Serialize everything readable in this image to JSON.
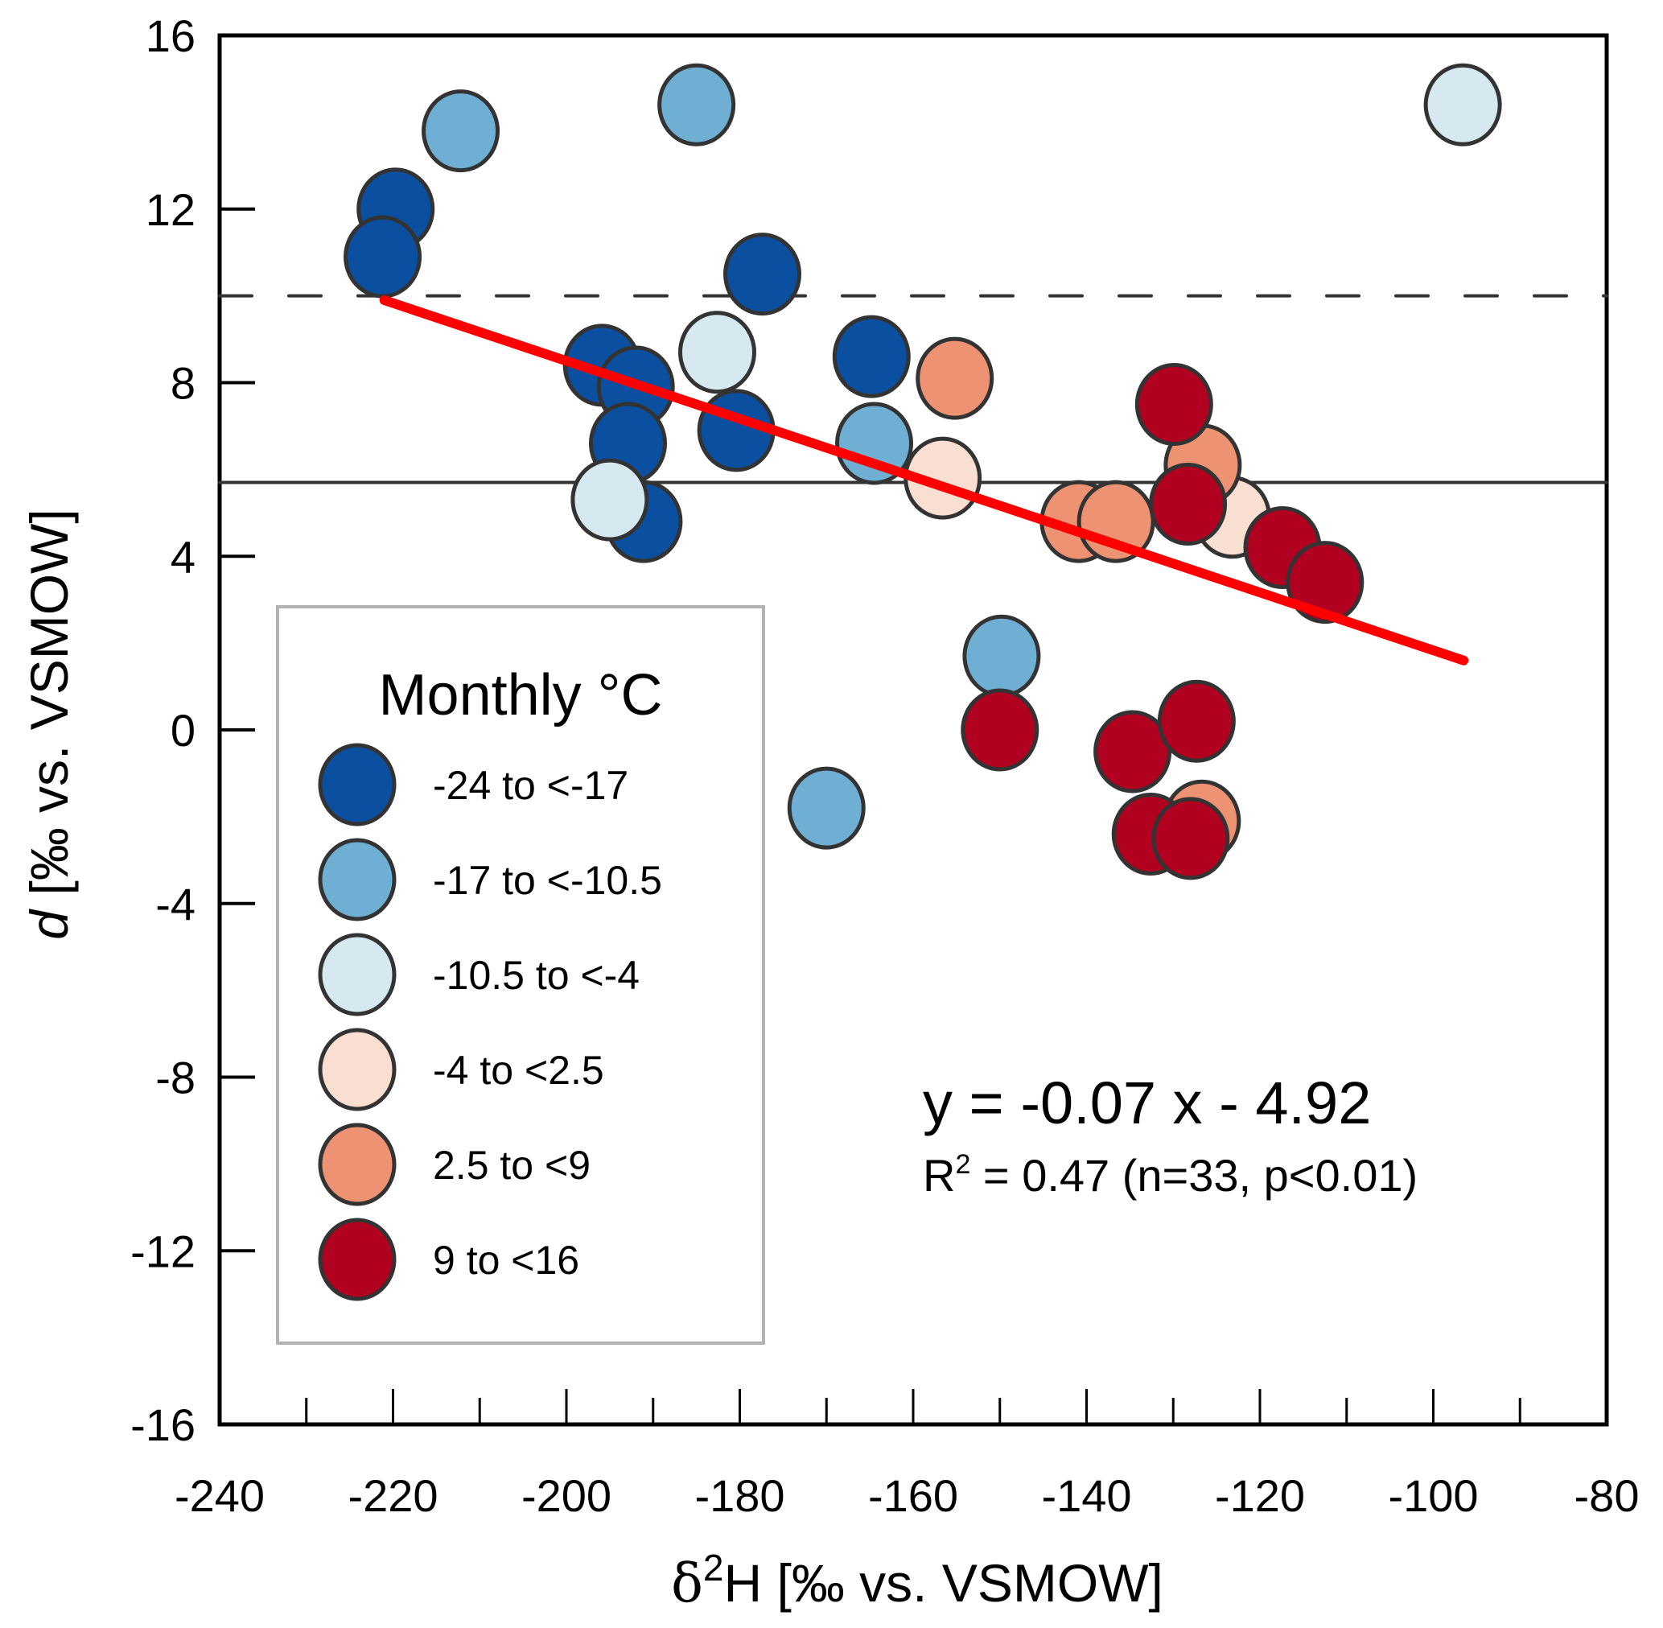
{
  "chart_data": {
    "type": "scatter",
    "title": "",
    "xlabel": "δ²H [‰ vs. VSMOW]",
    "xlabel_parts": {
      "delta": "δ",
      "sup": "2",
      "rest": "H [‰ vs. VSMOW]"
    },
    "ylabel": "d [‰ vs. VSMOW]",
    "ylabel_parts": {
      "italic": "d",
      "rest": " [‰ vs. VSMOW]"
    },
    "xlim": [
      -240,
      -80
    ],
    "ylim": [
      -16,
      16
    ],
    "x_major_ticks": [
      -240,
      -220,
      -200,
      -180,
      -160,
      -140,
      -120,
      -100,
      -80
    ],
    "x_minor_ticks": [
      -230,
      -210,
      -190,
      -170,
      -150,
      -130,
      -110,
      -90
    ],
    "y_ticks": [
      16,
      12,
      8,
      4,
      0,
      -4,
      -8,
      -12,
      -16
    ],
    "x_tick_labels": [
      "-240",
      "-220",
      "-200",
      "-180",
      "-160",
      "-140",
      "-120",
      "-100",
      "-80"
    ],
    "y_tick_labels": [
      "16",
      "12",
      "8",
      "4",
      "0",
      "-4",
      "-8",
      "-12",
      "-16"
    ],
    "grid": false,
    "reference_lines": [
      {
        "name": "global-meteoric-water-line-d-excess",
        "y": 10,
        "style": "dashed",
        "color": "#333333"
      },
      {
        "name": "mean-d-excess",
        "y": 5.7,
        "style": "solid",
        "color": "#333333"
      }
    ],
    "fit_line": {
      "slope": -0.07,
      "intercept": -4.92,
      "x_start": -221.0,
      "y_start": 9.9,
      "x_end": -96.5,
      "y_end": 1.6,
      "color": "#ff0000"
    },
    "annotation": {
      "equation": "y = -0.07 x - 4.92",
      "stats_prefix": "R",
      "stats_sup": "2",
      "stats_rest": " = 0.47 (n=33, p<0.01)"
    },
    "legend": {
      "title": "Monthly °C",
      "position": "left-bottom"
    },
    "series": [
      {
        "name": "-24 to <-17",
        "color": "#0b50a0",
        "points": [
          [
            -219.7,
            12.0
          ],
          [
            -221.2,
            10.9
          ],
          [
            -195.9,
            8.4
          ],
          [
            -192.0,
            7.9
          ],
          [
            -192.9,
            6.6
          ],
          [
            -191.1,
            4.8
          ],
          [
            -177.4,
            10.5
          ],
          [
            -180.4,
            6.9
          ],
          [
            -164.8,
            8.6
          ]
        ]
      },
      {
        "name": "-17 to <-10.5",
        "color": "#6fafd4",
        "points": [
          [
            -212.2,
            13.8
          ],
          [
            -185.0,
            14.4
          ],
          [
            -164.5,
            6.6
          ],
          [
            -149.8,
            1.7
          ],
          [
            -170.0,
            -1.8
          ]
        ]
      },
      {
        "name": "-10.5 to <-4",
        "color": "#d6e8f0",
        "points": [
          [
            -96.6,
            14.4
          ],
          [
            -182.6,
            8.7
          ],
          [
            -195.0,
            5.3
          ]
        ]
      },
      {
        "name": "-4 to <2.5",
        "color": "#f9dfd1",
        "points": [
          [
            -156.6,
            5.8
          ],
          [
            -123.2,
            4.9
          ]
        ]
      },
      {
        "name": "2.5 to <9",
        "color": "#ed9373",
        "points": [
          [
            -155.2,
            8.1
          ],
          [
            -140.9,
            4.8
          ],
          [
            -136.6,
            4.8
          ],
          [
            -126.6,
            6.1
          ],
          [
            -126.7,
            -2.1
          ]
        ]
      },
      {
        "name": "9 to <16",
        "color": "#b10020",
        "points": [
          [
            -129.9,
            7.5
          ],
          [
            -128.3,
            5.2
          ],
          [
            -117.4,
            4.2
          ],
          [
            -112.5,
            3.4
          ],
          [
            -150.0,
            0.0
          ],
          [
            -134.7,
            -0.5
          ],
          [
            -127.3,
            0.2
          ],
          [
            -132.6,
            -2.4
          ],
          [
            -128.0,
            -2.5
          ]
        ]
      }
    ]
  }
}
